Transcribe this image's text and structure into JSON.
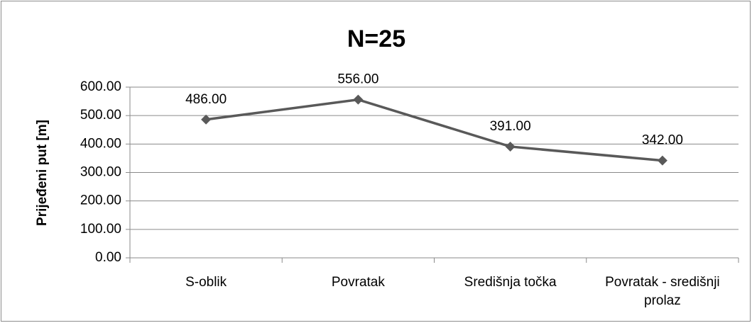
{
  "chart_data": {
    "type": "line",
    "title": "N=25",
    "y_label": "Prijeđeni put [m]",
    "categories": [
      "S-oblik",
      "Povratak",
      "Središnja točka",
      "Povratak - središnji prolaz"
    ],
    "series": [
      {
        "name": "N=25",
        "color": "#595959",
        "values": [
          486,
          556,
          391,
          342
        ],
        "value_labels": [
          "486.00",
          "556.00",
          "391.00",
          "342.00"
        ]
      }
    ],
    "ylim": [
      0,
      600
    ],
    "yticks": [
      {
        "value": 0,
        "label": "0.00"
      },
      {
        "value": 100,
        "label": "100.00"
      },
      {
        "value": 200,
        "label": "200.00"
      },
      {
        "value": 300,
        "label": "300.00"
      },
      {
        "value": 400,
        "label": "400.00"
      },
      {
        "value": 500,
        "label": "500.00"
      },
      {
        "value": 600,
        "label": "600.00"
      }
    ],
    "grid": true
  }
}
